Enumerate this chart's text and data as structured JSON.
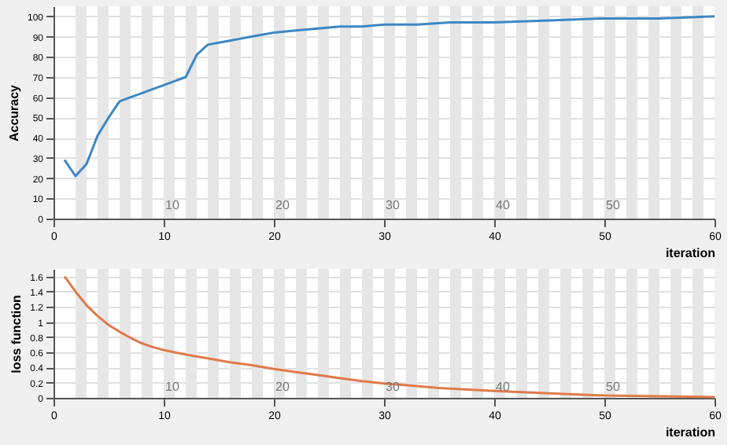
{
  "chart_data": [
    {
      "type": "line",
      "xlabel": "iteration",
      "ylabel": "Accuracy",
      "xlim": [
        0,
        60
      ],
      "xticks": [
        0,
        10,
        20,
        30,
        40,
        50,
        60
      ],
      "ylim": [
        0,
        105
      ],
      "yticks": [
        0,
        10,
        20,
        30,
        40,
        50,
        60,
        70,
        80,
        90,
        100
      ],
      "grid": "y",
      "marker": "none",
      "line_style": "solid",
      "series": [
        {
          "color": "#3d87c4",
          "x": [
            1,
            2,
            3,
            4,
            5,
            6,
            7,
            8,
            9,
            10,
            11,
            12,
            13,
            14,
            15,
            16,
            17,
            18,
            19,
            20,
            22,
            24,
            26,
            28,
            30,
            33,
            36,
            40,
            45,
            50,
            55,
            60
          ],
          "values": [
            29,
            21,
            27,
            41,
            50,
            58,
            60,
            62,
            64,
            66,
            68,
            70,
            81,
            86,
            87,
            88,
            89,
            90,
            91,
            92,
            93,
            94,
            95,
            95,
            96,
            96,
            97,
            97,
            98,
            99,
            99,
            100
          ]
        }
      ],
      "bands": [
        {
          "axis": "x",
          "from": 2,
          "to": 3,
          "color": "#e6e6e6"
        },
        {
          "axis": "x",
          "from": 4,
          "to": 5,
          "color": "#e6e6e6"
        },
        {
          "axis": "x",
          "from": 6,
          "to": 7,
          "color": "#e6e6e6"
        },
        {
          "axis": "x",
          "from": 8,
          "to": 9,
          "color": "#e6e6e6"
        },
        {
          "axis": "x",
          "from": 10,
          "to": 11,
          "color": "#e6e6e6"
        },
        {
          "axis": "x",
          "from": 12,
          "to": 13,
          "color": "#e6e6e6"
        },
        {
          "axis": "x",
          "from": 14,
          "to": 15,
          "color": "#e6e6e6"
        },
        {
          "axis": "x",
          "from": 16,
          "to": 17,
          "color": "#e6e6e6"
        },
        {
          "axis": "x",
          "from": 18,
          "to": 19,
          "color": "#e6e6e6"
        },
        {
          "axis": "x",
          "from": 20,
          "to": 21,
          "color": "#e6e6e6"
        },
        {
          "axis": "x",
          "from": 22,
          "to": 23,
          "color": "#e6e6e6"
        },
        {
          "axis": "x",
          "from": 24,
          "to": 25,
          "color": "#e6e6e6"
        },
        {
          "axis": "x",
          "from": 26,
          "to": 27,
          "color": "#e6e6e6"
        },
        {
          "axis": "x",
          "from": 28,
          "to": 29,
          "color": "#e6e6e6"
        },
        {
          "axis": "x",
          "from": 30,
          "to": 31,
          "color": "#e6e6e6"
        },
        {
          "axis": "x",
          "from": 32,
          "to": 33,
          "color": "#e6e6e6"
        },
        {
          "axis": "x",
          "from": 34,
          "to": 35,
          "color": "#e6e6e6"
        },
        {
          "axis": "x",
          "from": 36,
          "to": 37,
          "color": "#e6e6e6"
        },
        {
          "axis": "x",
          "from": 38,
          "to": 39,
          "color": "#e6e6e6"
        },
        {
          "axis": "x",
          "from": 40,
          "to": 41,
          "color": "#e6e6e6"
        },
        {
          "axis": "x",
          "from": 42,
          "to": 43,
          "color": "#e6e6e6"
        },
        {
          "axis": "x",
          "from": 44,
          "to": 45,
          "color": "#e6e6e6"
        },
        {
          "axis": "x",
          "from": 46,
          "to": 47,
          "color": "#e6e6e6"
        },
        {
          "axis": "x",
          "from": 48,
          "to": 49,
          "color": "#e6e6e6"
        },
        {
          "axis": "x",
          "from": 50,
          "to": 51,
          "color": "#e6e6e6"
        },
        {
          "axis": "x",
          "from": 52,
          "to": 53,
          "color": "#e6e6e6"
        },
        {
          "axis": "x",
          "from": 54,
          "to": 55,
          "color": "#e6e6e6"
        },
        {
          "axis": "x",
          "from": 56,
          "to": 57,
          "color": "#e6e6e6"
        },
        {
          "axis": "x",
          "from": 58,
          "to": 59,
          "color": "#e6e6e6"
        }
      ],
      "annotations": [
        {
          "text": "10",
          "x": 10,
          "y": 3
        },
        {
          "text": "20",
          "x": 20,
          "y": 3
        },
        {
          "text": "30",
          "x": 30,
          "y": 3
        },
        {
          "text": "40",
          "x": 40,
          "y": 3
        },
        {
          "text": "50",
          "x": 50,
          "y": 3
        }
      ]
    },
    {
      "type": "line",
      "xlabel": "iteration",
      "ylabel": "loss function",
      "xlim": [
        0,
        60
      ],
      "xticks": [
        0,
        10,
        20,
        30,
        40,
        50,
        60
      ],
      "ylim": [
        0,
        1.7
      ],
      "yticks": [
        0,
        0.2,
        0.4,
        0.6,
        0.8,
        1,
        1.2,
        1.4,
        1.6
      ],
      "grid": "y",
      "marker": "none",
      "line_style": "solid",
      "series": [
        {
          "color": "#e07a4a",
          "x": [
            1,
            2,
            3,
            4,
            5,
            6,
            7,
            8,
            9,
            10,
            12,
            14,
            16,
            18,
            20,
            22,
            24,
            26,
            28,
            30,
            35,
            40,
            45,
            50,
            55,
            60
          ],
          "values": [
            1.6,
            1.4,
            1.22,
            1.08,
            0.96,
            0.87,
            0.79,
            0.72,
            0.67,
            0.63,
            0.57,
            0.52,
            0.47,
            0.43,
            0.38,
            0.34,
            0.3,
            0.26,
            0.22,
            0.19,
            0.13,
            0.09,
            0.06,
            0.03,
            0.02,
            0.01
          ]
        }
      ],
      "bands": [
        {
          "axis": "x",
          "from": 2,
          "to": 3,
          "color": "#e6e6e6"
        },
        {
          "axis": "x",
          "from": 4,
          "to": 5,
          "color": "#e6e6e6"
        },
        {
          "axis": "x",
          "from": 6,
          "to": 7,
          "color": "#e6e6e6"
        },
        {
          "axis": "x",
          "from": 8,
          "to": 9,
          "color": "#e6e6e6"
        },
        {
          "axis": "x",
          "from": 10,
          "to": 11,
          "color": "#e6e6e6"
        },
        {
          "axis": "x",
          "from": 12,
          "to": 13,
          "color": "#e6e6e6"
        },
        {
          "axis": "x",
          "from": 14,
          "to": 15,
          "color": "#e6e6e6"
        },
        {
          "axis": "x",
          "from": 16,
          "to": 17,
          "color": "#e6e6e6"
        },
        {
          "axis": "x",
          "from": 18,
          "to": 19,
          "color": "#e6e6e6"
        },
        {
          "axis": "x",
          "from": 20,
          "to": 21,
          "color": "#e6e6e6"
        },
        {
          "axis": "x",
          "from": 22,
          "to": 23,
          "color": "#e6e6e6"
        },
        {
          "axis": "x",
          "from": 24,
          "to": 25,
          "color": "#e6e6e6"
        },
        {
          "axis": "x",
          "from": 26,
          "to": 27,
          "color": "#e6e6e6"
        },
        {
          "axis": "x",
          "from": 28,
          "to": 29,
          "color": "#e6e6e6"
        },
        {
          "axis": "x",
          "from": 30,
          "to": 31,
          "color": "#e6e6e6"
        },
        {
          "axis": "x",
          "from": 32,
          "to": 33,
          "color": "#e6e6e6"
        },
        {
          "axis": "x",
          "from": 34,
          "to": 35,
          "color": "#e6e6e6"
        },
        {
          "axis": "x",
          "from": 36,
          "to": 37,
          "color": "#e6e6e6"
        },
        {
          "axis": "x",
          "from": 38,
          "to": 39,
          "color": "#e6e6e6"
        },
        {
          "axis": "x",
          "from": 40,
          "to": 41,
          "color": "#e6e6e6"
        },
        {
          "axis": "x",
          "from": 42,
          "to": 43,
          "color": "#e6e6e6"
        },
        {
          "axis": "x",
          "from": 44,
          "to": 45,
          "color": "#e6e6e6"
        },
        {
          "axis": "x",
          "from": 46,
          "to": 47,
          "color": "#e6e6e6"
        },
        {
          "axis": "x",
          "from": 48,
          "to": 49,
          "color": "#e6e6e6"
        },
        {
          "axis": "x",
          "from": 50,
          "to": 51,
          "color": "#e6e6e6"
        },
        {
          "axis": "x",
          "from": 52,
          "to": 53,
          "color": "#e6e6e6"
        },
        {
          "axis": "x",
          "from": 54,
          "to": 55,
          "color": "#e6e6e6"
        },
        {
          "axis": "x",
          "from": 56,
          "to": 57,
          "color": "#e6e6e6"
        },
        {
          "axis": "x",
          "from": 58,
          "to": 59,
          "color": "#e6e6e6"
        }
      ],
      "annotations": [
        {
          "text": "10",
          "x": 10,
          "y": 0.05
        },
        {
          "text": "20",
          "x": 20,
          "y": 0.05
        },
        {
          "text": "30",
          "x": 30,
          "y": 0.05
        },
        {
          "text": "40",
          "x": 40,
          "y": 0.05
        },
        {
          "text": "50",
          "x": 50,
          "y": 0.05
        }
      ]
    }
  ]
}
